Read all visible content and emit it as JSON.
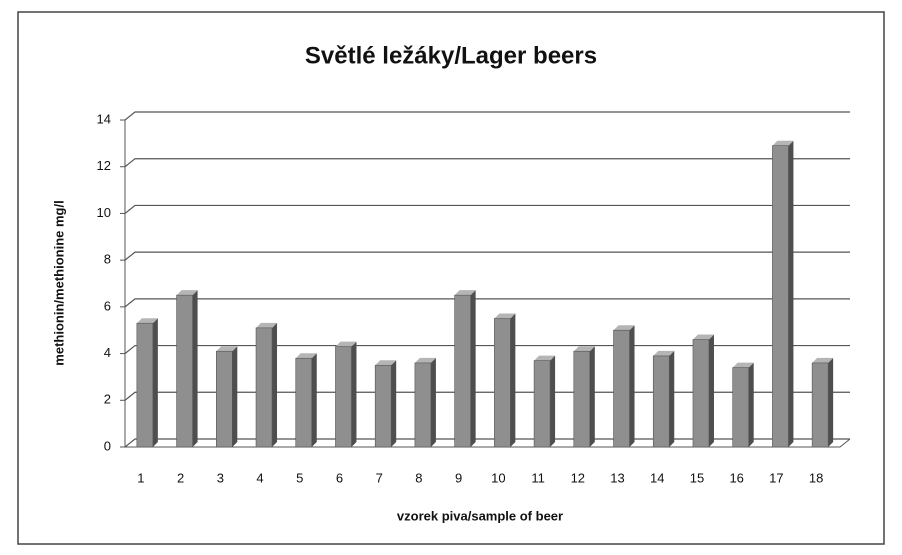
{
  "chart_data": {
    "type": "bar3d",
    "title": "Světlé ležáky/Lager beers",
    "x_label": "vzorek piva/sample of beer",
    "y_label": "methionin/methionine mg/l",
    "categories": [
      "1",
      "2",
      "3",
      "4",
      "5",
      "6",
      "7",
      "8",
      "9",
      "10",
      "11",
      "12",
      "13",
      "14",
      "15",
      "16",
      "17",
      "18"
    ],
    "values": [
      5.3,
      6.5,
      4.1,
      5.1,
      3.8,
      4.3,
      3.5,
      3.6,
      6.5,
      5.5,
      3.7,
      4.1,
      5.0,
      3.9,
      4.6,
      3.4,
      12.9,
      3.6
    ],
    "color": "#8f8f8f",
    "ylim": [
      0,
      14
    ],
    "yticks": [
      0,
      2,
      4,
      6,
      8,
      10,
      12,
      14
    ],
    "grid": true
  }
}
